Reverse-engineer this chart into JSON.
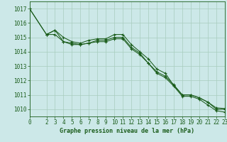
{
  "title": "Graphe pression niveau de la mer (hPa)",
  "bg_color": "#cce8e8",
  "grid_color": "#a8ccbe",
  "line_color": "#1a5c1a",
  "xlim": [
    0,
    23
  ],
  "ylim": [
    1009.5,
    1017.5
  ],
  "yticks": [
    1010,
    1011,
    1012,
    1013,
    1014,
    1015,
    1016,
    1017
  ],
  "xtick_labels": [
    "0",
    "2",
    "3",
    "4",
    "5",
    "6",
    "7",
    "8",
    "9",
    "10",
    "11",
    "12",
    "13",
    "14",
    "15",
    "16",
    "17",
    "18",
    "19",
    "20",
    "21",
    "22",
    "23"
  ],
  "xtick_pos": [
    0,
    2,
    3,
    4,
    5,
    6,
    7,
    8,
    9,
    10,
    11,
    12,
    13,
    14,
    15,
    16,
    17,
    18,
    19,
    20,
    21,
    22,
    23
  ],
  "series1_x": [
    0,
    2,
    3,
    4,
    5,
    6,
    7,
    8,
    9,
    10,
    11,
    12,
    13,
    14,
    15,
    16,
    17,
    18,
    19,
    20,
    21,
    22,
    23
  ],
  "series1_y": [
    1017.0,
    1015.2,
    1015.5,
    1015.0,
    1014.7,
    1014.6,
    1014.8,
    1014.9,
    1014.9,
    1015.2,
    1015.2,
    1014.5,
    1014.0,
    1013.5,
    1012.8,
    1012.5,
    1011.65,
    1011.0,
    1011.0,
    1010.8,
    1010.5,
    1010.1,
    1010.05
  ],
  "series2_x": [
    2,
    3,
    4,
    5,
    6,
    7,
    8,
    9,
    10,
    11,
    12,
    13,
    14,
    15,
    16,
    17,
    18,
    19,
    20,
    21,
    22,
    23
  ],
  "series2_y": [
    1015.2,
    1015.5,
    1014.7,
    1014.6,
    1014.5,
    1014.6,
    1014.8,
    1014.8,
    1015.0,
    1015.0,
    1014.3,
    1013.9,
    1013.2,
    1012.6,
    1012.3,
    1011.7,
    1011.0,
    1011.0,
    1010.8,
    1010.5,
    1010.0,
    1010.0
  ],
  "series3_x": [
    0,
    2,
    3,
    4,
    5,
    6,
    7,
    8,
    9,
    10,
    11,
    12,
    13,
    14,
    15,
    16,
    17,
    18,
    19,
    20,
    21,
    22,
    23
  ],
  "series3_y": [
    1017.0,
    1015.2,
    1015.2,
    1014.7,
    1014.5,
    1014.5,
    1014.6,
    1014.7,
    1014.7,
    1014.9,
    1014.9,
    1014.2,
    1013.8,
    1013.2,
    1012.5,
    1012.2,
    1011.6,
    1010.9,
    1010.9,
    1010.7,
    1010.3,
    1009.9,
    1009.8
  ],
  "marker": "+",
  "marker_size": 3.5,
  "linewidth": 0.75,
  "tick_fontsize": 5.5,
  "label_fontsize": 6.0
}
